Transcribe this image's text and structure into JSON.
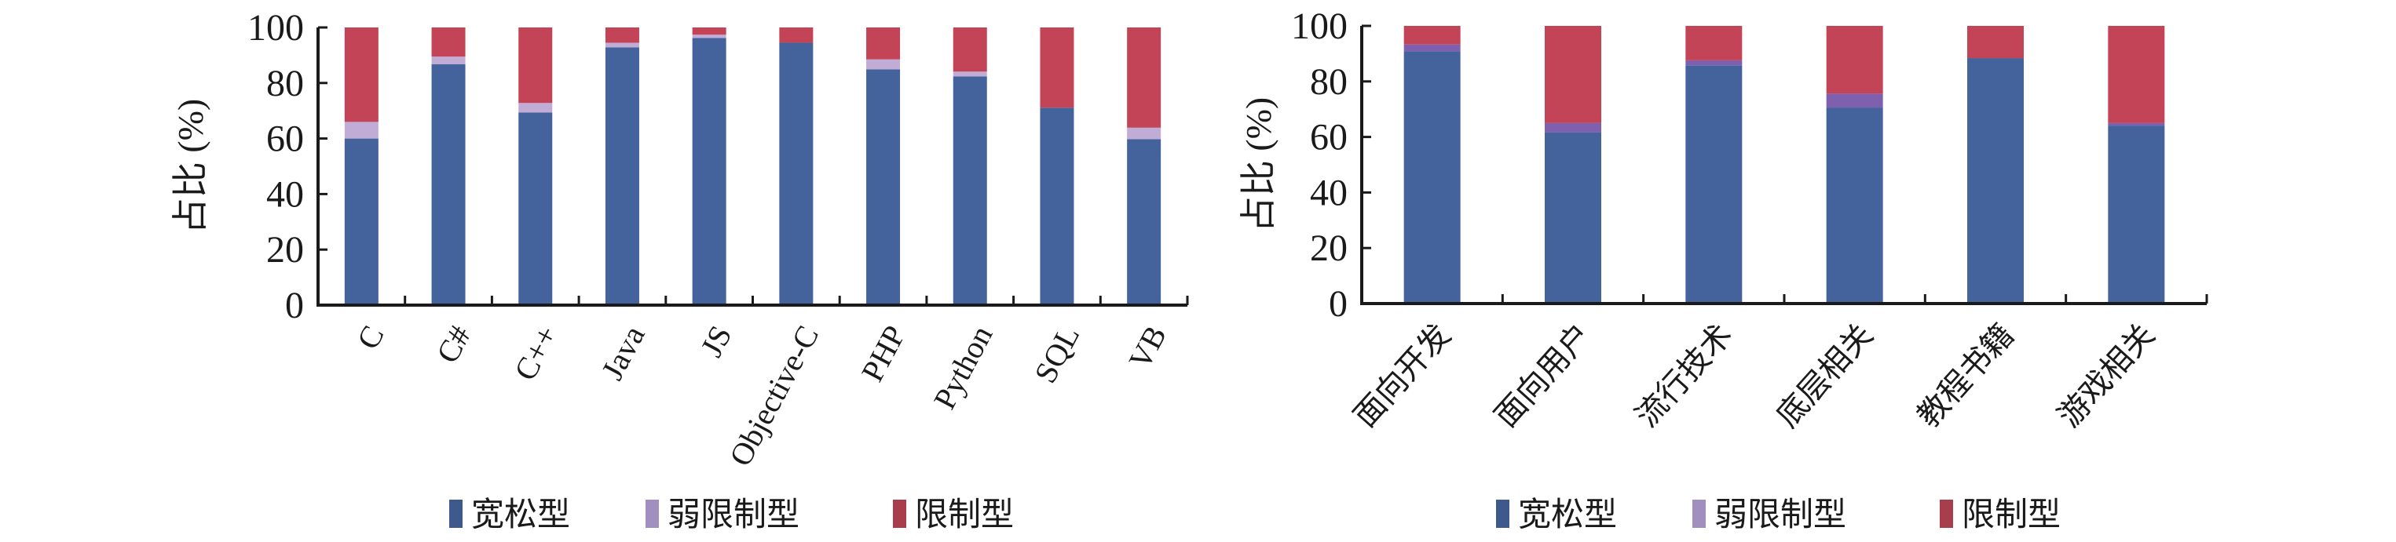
{
  "legend_labels": [
    "宽松型",
    "弱限制型",
    "限制型"
  ],
  "colors": {
    "loose": "#44639d",
    "weak": "#c1acd6",
    "weak_right": "#7f60ae",
    "restricted": "#c34456",
    "legend_loose": "#3e5a8c",
    "legend_weak": "#a08fbf",
    "legend_restricted": "#a83e4c"
  },
  "chart_data": [
    {
      "type": "bar",
      "stacked": true,
      "ylabel": "占比 (%)",
      "ylim": [
        0,
        100
      ],
      "yticks": [
        0,
        20,
        40,
        60,
        80,
        100
      ],
      "grid": false,
      "legend_position": "bottom",
      "categories": [
        "C",
        "C#",
        "C++",
        "Java",
        "JS",
        "Objective-C",
        "PHP",
        "Python",
        "SQL",
        "VB"
      ],
      "series": [
        {
          "name": "宽松型",
          "values": [
            60,
            86.8,
            69.4,
            92.8,
            96.2,
            94.5,
            84.9,
            82.4,
            71.1,
            59.8
          ]
        },
        {
          "name": "弱限制型",
          "values": [
            6,
            2.7,
            3.4,
            1.7,
            1.2,
            0,
            3.6,
            1.7,
            0,
            4.1
          ]
        },
        {
          "name": "限制型",
          "values": [
            34,
            10.5,
            27.2,
            5.5,
            2.6,
            5.5,
            11.5,
            15.9,
            28.9,
            36.1
          ]
        }
      ]
    },
    {
      "type": "bar",
      "stacked": true,
      "ylabel": "占比 (%)",
      "ylim": [
        0,
        100
      ],
      "yticks": [
        0,
        20,
        40,
        60,
        80,
        100
      ],
      "grid": false,
      "legend_position": "bottom",
      "categories": [
        "面向开发",
        "面向用户",
        "流行技术",
        "底层相关",
        "教程书籍",
        "游戏相关"
      ],
      "series": [
        {
          "name": "宽松型",
          "values": [
            90.8,
            61.6,
            85.8,
            70.6,
            88.4,
            64.1
          ]
        },
        {
          "name": "弱限制型",
          "values": [
            2.5,
            3.4,
            1.8,
            5.0,
            0,
            0.9
          ]
        },
        {
          "name": "限制型",
          "values": [
            6.7,
            35.0,
            12.4,
            24.4,
            11.6,
            35.0
          ]
        }
      ]
    }
  ]
}
